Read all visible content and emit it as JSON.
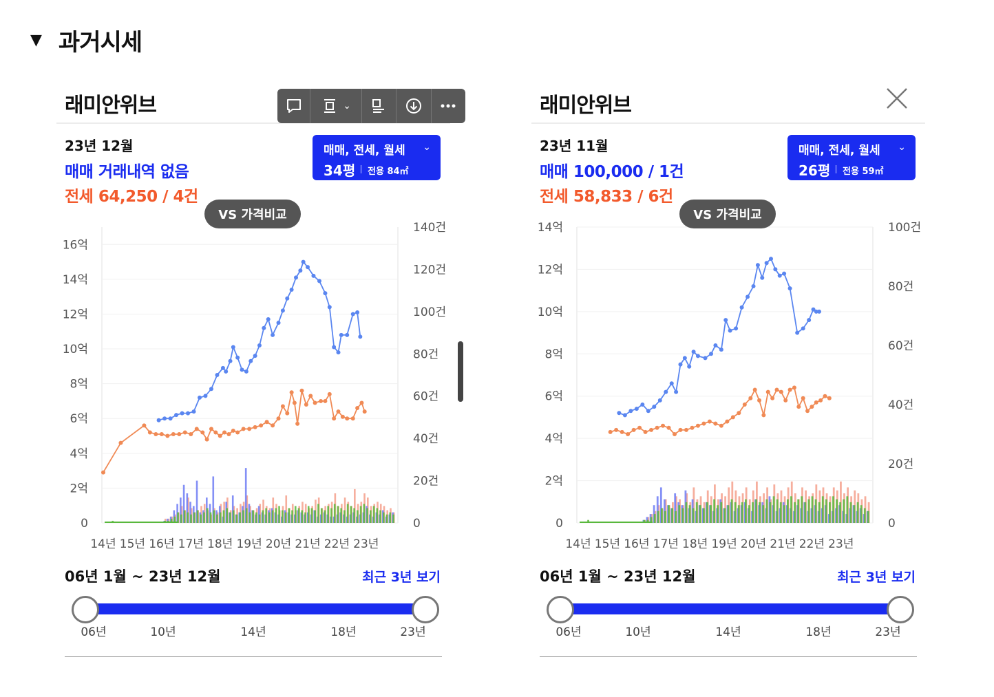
{
  "section": {
    "title": "과거시세",
    "toggle_glyph": "▼"
  },
  "colors": {
    "sale": "#1a2cf0",
    "jeonse": "#f25a2c",
    "sale_line": "#5a86f0",
    "jeonse_line": "#f08a55",
    "bar_sale": "#6f7cf5",
    "bar_jeonse": "#f4a08c",
    "bar_monthly": "#59b83c"
  },
  "toolbar": {
    "icons": [
      "comment-icon",
      "align-icon",
      "caption-icon",
      "download-icon",
      "more-icon"
    ],
    "chevron": "⌄"
  },
  "panels": [
    {
      "name": "래미안위브",
      "date": "23년 12월",
      "sale": "매매 거래내역 없음",
      "jeonse": "전세 64,250 / 4건",
      "type_line1": "매매, 전세, 월세",
      "type_size": "34평",
      "type_area": "전용 84㎡",
      "vs_button": "VS 가격비교",
      "range": "06년 1월 ~ 23년 12월",
      "recent": "최근 3년 보기",
      "slider_ticks": [
        "06년",
        "10년",
        "14년",
        "18년",
        "23년"
      ]
    },
    {
      "name": "래미안위브",
      "date": "23년 11월",
      "sale": "매매 100,000 / 1건",
      "jeonse": "전세 58,833 / 6건",
      "type_line1": "매매, 전세, 월세",
      "type_size": "26평",
      "type_area": "전용 59㎡",
      "vs_button": "VS 가격비교",
      "range": "06년 1월 ~ 23년 12월",
      "recent": "최근 3년 보기",
      "slider_ticks": [
        "06년",
        "10년",
        "14년",
        "18년",
        "23년"
      ]
    }
  ],
  "chart_data": [
    {
      "type": "line",
      "x_labels": [
        "14년",
        "15년",
        "16년",
        "17년",
        "18년",
        "19년",
        "20년",
        "21년",
        "22년",
        "23년"
      ],
      "y_left_ticks": [
        "0",
        "2억",
        "4억",
        "6억",
        "8억",
        "10억",
        "12억",
        "14억",
        "16억"
      ],
      "y_left_max": 17,
      "y_right_ticks": [
        "0",
        "20건",
        "40건",
        "60건",
        "80건",
        "100건",
        "120건",
        "140건"
      ],
      "y_right_max": 140,
      "sale_series": [
        [
          15.9,
          5.9
        ],
        [
          16.1,
          6.0
        ],
        [
          16.3,
          6.0
        ],
        [
          16.5,
          6.2
        ],
        [
          16.7,
          6.3
        ],
        [
          16.9,
          6.3
        ],
        [
          17.1,
          6.4
        ],
        [
          17.3,
          7.2
        ],
        [
          17.5,
          7.3
        ],
        [
          17.7,
          7.7
        ],
        [
          17.9,
          8.5
        ],
        [
          18.1,
          8.9
        ],
        [
          18.2,
          8.7
        ],
        [
          18.35,
          9.3
        ],
        [
          18.45,
          10.1
        ],
        [
          18.6,
          9.5
        ],
        [
          18.75,
          8.8
        ],
        [
          18.9,
          8.7
        ],
        [
          19.05,
          9.3
        ],
        [
          19.2,
          9.6
        ],
        [
          19.35,
          10.2
        ],
        [
          19.5,
          11.2
        ],
        [
          19.65,
          11.7
        ],
        [
          19.8,
          10.8
        ],
        [
          20.0,
          11.5
        ],
        [
          20.15,
          12.2
        ],
        [
          20.3,
          12.9
        ],
        [
          20.45,
          13.4
        ],
        [
          20.6,
          14.1
        ],
        [
          20.75,
          14.5
        ],
        [
          20.85,
          15.0
        ],
        [
          21.0,
          14.7
        ],
        [
          21.2,
          14.2
        ],
        [
          21.4,
          13.9
        ],
        [
          21.6,
          13.2
        ],
        [
          21.75,
          12.4
        ],
        [
          21.9,
          10.1
        ],
        [
          22.05,
          9.8
        ],
        [
          22.15,
          10.8
        ],
        [
          22.35,
          10.8
        ],
        [
          22.55,
          12.0
        ],
        [
          22.7,
          12.1
        ],
        [
          22.8,
          10.7
        ]
      ],
      "jeonse_series": [
        [
          14.0,
          2.9
        ],
        [
          14.6,
          4.6
        ],
        [
          15.4,
          5.6
        ],
        [
          15.6,
          5.2
        ],
        [
          15.8,
          5.1
        ],
        [
          16.0,
          5.1
        ],
        [
          16.2,
          5.0
        ],
        [
          16.4,
          5.1
        ],
        [
          16.6,
          5.1
        ],
        [
          16.8,
          5.2
        ],
        [
          17.0,
          5.1
        ],
        [
          17.2,
          5.4
        ],
        [
          17.4,
          5.2
        ],
        [
          17.55,
          4.8
        ],
        [
          17.7,
          5.4
        ],
        [
          17.85,
          5.2
        ],
        [
          18.0,
          5.0
        ],
        [
          18.15,
          5.2
        ],
        [
          18.3,
          5.1
        ],
        [
          18.45,
          5.3
        ],
        [
          18.6,
          5.2
        ],
        [
          18.8,
          5.4
        ],
        [
          19.0,
          5.4
        ],
        [
          19.2,
          5.5
        ],
        [
          19.4,
          5.6
        ],
        [
          19.6,
          5.8
        ],
        [
          19.8,
          5.6
        ],
        [
          20.0,
          6.0
        ],
        [
          20.15,
          6.7
        ],
        [
          20.3,
          6.3
        ],
        [
          20.45,
          7.5
        ],
        [
          20.55,
          6.9
        ],
        [
          20.65,
          5.7
        ],
        [
          20.8,
          7.6
        ],
        [
          20.95,
          6.8
        ],
        [
          21.1,
          7.3
        ],
        [
          21.25,
          6.9
        ],
        [
          21.45,
          7.0
        ],
        [
          21.6,
          7.0
        ],
        [
          21.75,
          7.4
        ],
        [
          21.9,
          6.0
        ],
        [
          22.05,
          6.4
        ],
        [
          22.2,
          6.1
        ],
        [
          22.35,
          6.0
        ],
        [
          22.55,
          6.0
        ],
        [
          22.7,
          6.6
        ],
        [
          22.85,
          6.9
        ],
        [
          22.95,
          6.4
        ]
      ],
      "volume_sale": [
        0,
        0,
        0,
        0,
        0,
        0,
        0,
        0,
        0,
        0,
        0,
        0,
        0,
        0,
        0,
        0,
        0,
        0,
        1,
        2,
        3,
        6,
        9,
        12,
        18,
        14,
        10,
        8,
        20,
        5,
        6,
        12,
        9,
        22,
        6,
        8,
        3,
        10,
        5,
        13,
        4,
        5,
        8,
        26,
        9,
        6,
        4,
        8,
        5,
        4,
        6,
        7,
        5,
        4,
        3,
        6,
        5,
        4,
        4,
        6,
        5,
        4,
        5,
        4,
        6,
        3,
        4,
        5,
        4,
        3,
        3,
        4,
        5,
        4,
        3,
        4,
        5,
        3,
        4,
        5,
        8,
        4,
        3,
        5,
        4,
        6,
        3,
        4,
        5
      ],
      "volume_jeonse": [
        0,
        0,
        0,
        0,
        0,
        0,
        0,
        0,
        0,
        0,
        0,
        0,
        0,
        0,
        0,
        0,
        0,
        0,
        2,
        2,
        3,
        4,
        5,
        8,
        6,
        12,
        7,
        5,
        6,
        8,
        9,
        6,
        4,
        7,
        5,
        9,
        10,
        12,
        6,
        8,
        7,
        9,
        10,
        13,
        8,
        6,
        7,
        9,
        11,
        8,
        7,
        12,
        9,
        6,
        8,
        13,
        7,
        9,
        6,
        8,
        10,
        9,
        7,
        8,
        11,
        12,
        7,
        8,
        9,
        10,
        14,
        8,
        9,
        12,
        10,
        8,
        16,
        9,
        10,
        14,
        12,
        8,
        9,
        10,
        9,
        8,
        6,
        7,
        5
      ],
      "volume_monthly": [
        0,
        0,
        1,
        0,
        0,
        0,
        0,
        0,
        0,
        0,
        0,
        0,
        0,
        0,
        0,
        0,
        0,
        0,
        1,
        1,
        2,
        3,
        5,
        4,
        6,
        5,
        4,
        5,
        6,
        4,
        5,
        7,
        5,
        6,
        4,
        5,
        6,
        7,
        5,
        6,
        4,
        5,
        6,
        7,
        5,
        6,
        5,
        4,
        6,
        7,
        5,
        6,
        7,
        8,
        6,
        5,
        7,
        6,
        8,
        7,
        6,
        5,
        8,
        7,
        6,
        9,
        7,
        6,
        8,
        7,
        9,
        8,
        7,
        6,
        9,
        8,
        7,
        6,
        8,
        9,
        7,
        6,
        8,
        7,
        6,
        5,
        4,
        5,
        4
      ]
    },
    {
      "type": "line",
      "x_labels": [
        "14년",
        "15년",
        "16년",
        "17년",
        "18년",
        "19년",
        "20년",
        "21년",
        "22년",
        "23년"
      ],
      "y_left_ticks": [
        "0",
        "2억",
        "4억",
        "6억",
        "8억",
        "10억",
        "12억",
        "14억"
      ],
      "y_left_max": 14,
      "y_right_ticks": [
        "0",
        "20건",
        "40건",
        "60건",
        "80건",
        "100건"
      ],
      "y_right_max": 100,
      "sale_series": [
        [
          15.4,
          5.2
        ],
        [
          15.6,
          5.1
        ],
        [
          15.8,
          5.3
        ],
        [
          16.0,
          5.4
        ],
        [
          16.2,
          5.6
        ],
        [
          16.4,
          5.3
        ],
        [
          16.6,
          5.5
        ],
        [
          16.8,
          5.8
        ],
        [
          17.0,
          6.2
        ],
        [
          17.2,
          6.6
        ],
        [
          17.35,
          6.2
        ],
        [
          17.5,
          7.5
        ],
        [
          17.65,
          7.8
        ],
        [
          17.8,
          7.4
        ],
        [
          17.95,
          8.1
        ],
        [
          18.1,
          7.9
        ],
        [
          18.35,
          7.8
        ],
        [
          18.55,
          8.0
        ],
        [
          18.7,
          8.4
        ],
        [
          18.9,
          8.2
        ],
        [
          19.05,
          9.6
        ],
        [
          19.2,
          9.1
        ],
        [
          19.4,
          9.2
        ],
        [
          19.6,
          10.2
        ],
        [
          19.8,
          10.7
        ],
        [
          20.0,
          11.2
        ],
        [
          20.15,
          12.2
        ],
        [
          20.3,
          11.6
        ],
        [
          20.45,
          12.3
        ],
        [
          20.6,
          12.5
        ],
        [
          20.75,
          12.0
        ],
        [
          20.9,
          11.7
        ],
        [
          21.05,
          11.8
        ],
        [
          21.25,
          11.1
        ],
        [
          21.5,
          9.0
        ],
        [
          21.7,
          9.2
        ],
        [
          21.9,
          9.6
        ],
        [
          22.05,
          10.1
        ],
        [
          22.15,
          10.0
        ],
        [
          22.25,
          10.0
        ]
      ],
      "jeonse_series": [
        [
          15.1,
          4.3
        ],
        [
          15.3,
          4.4
        ],
        [
          15.5,
          4.3
        ],
        [
          15.7,
          4.2
        ],
        [
          15.9,
          4.4
        ],
        [
          16.1,
          4.5
        ],
        [
          16.3,
          4.3
        ],
        [
          16.5,
          4.4
        ],
        [
          16.7,
          4.5
        ],
        [
          16.9,
          4.6
        ],
        [
          17.1,
          4.5
        ],
        [
          17.3,
          4.2
        ],
        [
          17.5,
          4.4
        ],
        [
          17.7,
          4.4
        ],
        [
          17.9,
          4.5
        ],
        [
          18.1,
          4.6
        ],
        [
          18.3,
          4.7
        ],
        [
          18.5,
          4.8
        ],
        [
          18.7,
          4.7
        ],
        [
          18.9,
          4.6
        ],
        [
          19.1,
          4.8
        ],
        [
          19.3,
          5.0
        ],
        [
          19.5,
          5.2
        ],
        [
          19.7,
          5.6
        ],
        [
          19.9,
          5.9
        ],
        [
          20.05,
          6.3
        ],
        [
          20.2,
          5.8
        ],
        [
          20.35,
          5.1
        ],
        [
          20.5,
          6.2
        ],
        [
          20.65,
          5.9
        ],
        [
          20.8,
          6.3
        ],
        [
          20.95,
          6.2
        ],
        [
          21.1,
          5.8
        ],
        [
          21.25,
          6.3
        ],
        [
          21.4,
          6.4
        ],
        [
          21.55,
          5.5
        ],
        [
          21.7,
          5.9
        ],
        [
          21.85,
          5.3
        ],
        [
          22.0,
          5.5
        ],
        [
          22.15,
          5.7
        ],
        [
          22.3,
          5.8
        ],
        [
          22.45,
          6.0
        ],
        [
          22.6,
          5.9
        ]
      ],
      "volume_sale": [
        0,
        0,
        0,
        0,
        0,
        0,
        0,
        0,
        0,
        0,
        0,
        0,
        0,
        0,
        0,
        0,
        0,
        0,
        1,
        2,
        3,
        6,
        9,
        12,
        8,
        6,
        5,
        10,
        7,
        6,
        11,
        5,
        8,
        4,
        6,
        5,
        7,
        6,
        4,
        5,
        8,
        5,
        6,
        7,
        4,
        5,
        6,
        7,
        5,
        4,
        8,
        6,
        7,
        5,
        9,
        6,
        4,
        5,
        7,
        6,
        5,
        4,
        6,
        5,
        7,
        4,
        5,
        6,
        4,
        5,
        6,
        3,
        4,
        5,
        6,
        4,
        3,
        5,
        6,
        4,
        5,
        3,
        4
      ],
      "volume_jeonse": [
        0,
        0,
        0,
        0,
        0,
        0,
        0,
        0,
        0,
        0,
        0,
        0,
        0,
        0,
        0,
        0,
        0,
        0,
        1,
        2,
        3,
        4,
        6,
        5,
        8,
        6,
        7,
        9,
        8,
        6,
        10,
        7,
        12,
        8,
        9,
        7,
        11,
        9,
        13,
        8,
        10,
        9,
        12,
        14,
        11,
        9,
        10,
        12,
        8,
        11,
        14,
        9,
        10,
        12,
        8,
        13,
        10,
        11,
        9,
        12,
        14,
        10,
        8,
        12,
        11,
        9,
        10,
        13,
        11,
        12,
        10,
        9,
        12,
        11,
        14,
        10,
        12,
        9,
        11,
        10,
        8,
        9,
        7
      ],
      "volume_monthly": [
        0,
        0,
        1,
        0,
        0,
        0,
        0,
        0,
        0,
        0,
        0,
        0,
        0,
        0,
        0,
        0,
        0,
        0,
        1,
        1,
        2,
        3,
        4,
        5,
        4,
        6,
        5,
        4,
        6,
        5,
        7,
        6,
        5,
        7,
        6,
        5,
        7,
        6,
        8,
        6,
        7,
        5,
        6,
        8,
        7,
        6,
        7,
        8,
        6,
        7,
        8,
        7,
        6,
        8,
        7,
        9,
        8,
        7,
        6,
        8,
        9,
        7,
        8,
        9,
        7,
        8,
        9,
        8,
        7,
        9,
        8,
        7,
        9,
        8,
        7,
        8,
        9,
        7,
        6,
        7,
        6,
        5,
        4
      ]
    }
  ]
}
